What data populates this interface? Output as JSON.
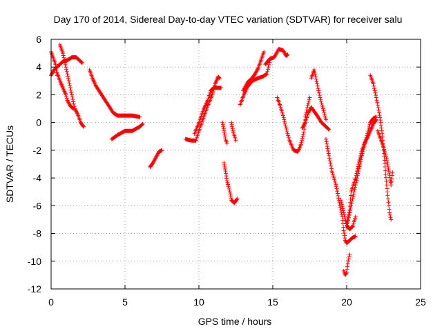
{
  "chart_data": {
    "type": "scatter",
    "title": "Day 170 of 2014, Sidereal Day-to-day VTEC variation (SDTVAR) for receiver salu",
    "xlabel": "GPS time / hours",
    "ylabel": "SDTVAR / TECUs",
    "xlim": [
      0,
      25
    ],
    "ylim": [
      -12,
      6
    ],
    "xticks": [
      "0",
      "5",
      "10",
      "15",
      "20",
      "25"
    ],
    "yticks": [
      "6",
      "4",
      "2",
      "0",
      "-2",
      "-4",
      "-6",
      "-8",
      "-10",
      "-12"
    ],
    "grid": true,
    "marker": "+",
    "marker_color": "#ff0000",
    "tracks": [
      [
        [
          0.0,
          3.4
        ],
        [
          0.2,
          3.8
        ],
        [
          0.5,
          4.1
        ],
        [
          0.8,
          4.4
        ],
        [
          1.1,
          4.5
        ],
        [
          1.4,
          4.7
        ],
        [
          1.7,
          4.7
        ],
        [
          2.0,
          4.4
        ],
        [
          2.1,
          4.3
        ]
      ],
      [
        [
          0.0,
          5.1
        ],
        [
          0.1,
          4.8
        ],
        [
          0.3,
          4.2
        ],
        [
          0.4,
          3.4
        ]
      ],
      [
        [
          0.4,
          3.6
        ],
        [
          0.6,
          3.0
        ],
        [
          0.8,
          2.5
        ],
        [
          1.0,
          2.0
        ],
        [
          1.1,
          1.6
        ],
        [
          1.3,
          1.2
        ],
        [
          1.5,
          1.0
        ]
      ],
      [
        [
          0.6,
          5.6
        ],
        [
          0.8,
          5.0
        ],
        [
          1.0,
          4.0
        ],
        [
          1.2,
          3.0
        ],
        [
          1.4,
          2.0
        ],
        [
          1.6,
          1.0
        ],
        [
          1.8,
          0.6
        ],
        [
          2.0,
          0.0
        ],
        [
          2.2,
          -0.3
        ]
      ],
      [
        [
          2.6,
          3.8
        ],
        [
          2.8,
          3.2
        ],
        [
          3.0,
          2.7
        ],
        [
          3.3,
          2.2
        ],
        [
          3.6,
          1.7
        ],
        [
          3.9,
          1.2
        ],
        [
          4.2,
          0.7
        ],
        [
          4.5,
          0.5
        ],
        [
          5.0,
          0.5
        ],
        [
          5.5,
          0.5
        ],
        [
          6.0,
          0.4
        ]
      ],
      [
        [
          4.1,
          -1.2
        ],
        [
          4.5,
          -0.9
        ],
        [
          5.0,
          -0.6
        ],
        [
          5.5,
          -0.6
        ],
        [
          6.0,
          -0.3
        ],
        [
          6.2,
          -0.1
        ]
      ],
      [
        [
          6.7,
          -3.2
        ],
        [
          6.9,
          -2.9
        ],
        [
          7.1,
          -2.5
        ],
        [
          7.3,
          -2.1
        ],
        [
          7.5,
          -2.0
        ]
      ],
      [
        [
          9.1,
          -1.2
        ],
        [
          9.5,
          -1.3
        ],
        [
          9.8,
          -1.3
        ],
        [
          10.0,
          -0.6
        ],
        [
          10.3,
          0.3
        ],
        [
          10.6,
          1.2
        ],
        [
          10.9,
          2.0
        ],
        [
          11.1,
          2.8
        ],
        [
          11.3,
          3.3
        ],
        [
          11.4,
          3.2
        ]
      ],
      [
        [
          9.7,
          -0.8
        ],
        [
          10.0,
          0.0
        ],
        [
          10.3,
          0.9
        ],
        [
          10.6,
          1.6
        ],
        [
          10.8,
          2.3
        ],
        [
          11.0,
          2.5
        ],
        [
          11.3,
          2.5
        ],
        [
          11.5,
          2.5
        ]
      ],
      [
        [
          11.6,
          0.0
        ],
        [
          11.7,
          -0.6
        ],
        [
          11.8,
          -1.2
        ],
        [
          11.9,
          -1.5
        ]
      ],
      [
        [
          11.7,
          -2.9
        ],
        [
          11.8,
          -3.5
        ],
        [
          11.9,
          -4.2
        ],
        [
          12.1,
          -5.0
        ],
        [
          12.2,
          -5.6
        ],
        [
          12.4,
          -5.8
        ],
        [
          12.6,
          -5.5
        ]
      ],
      [
        [
          12.2,
          0.0
        ],
        [
          12.3,
          -0.6
        ],
        [
          12.5,
          -1.3
        ]
      ],
      [
        [
          12.8,
          1.3
        ],
        [
          13.0,
          1.9
        ],
        [
          13.3,
          2.6
        ],
        [
          13.6,
          3.0
        ],
        [
          14.0,
          3.2
        ],
        [
          14.3,
          3.3
        ],
        [
          14.6,
          3.5
        ],
        [
          14.8,
          4.5
        ]
      ],
      [
        [
          13.0,
          2.3
        ],
        [
          13.3,
          2.9
        ],
        [
          13.6,
          3.2
        ],
        [
          13.8,
          3.5
        ],
        [
          14.0,
          3.9
        ],
        [
          14.2,
          4.5
        ],
        [
          14.4,
          5.1
        ]
      ],
      [
        [
          14.5,
          4.2
        ],
        [
          14.8,
          4.6
        ],
        [
          15.1,
          4.7
        ],
        [
          15.4,
          5.3
        ],
        [
          15.7,
          5.2
        ],
        [
          15.9,
          4.8
        ],
        [
          16.0,
          4.9
        ]
      ],
      [
        [
          15.3,
          1.8
        ],
        [
          15.5,
          1.2
        ],
        [
          15.7,
          0.5
        ],
        [
          15.9,
          -0.4
        ],
        [
          16.1,
          -1.2
        ],
        [
          16.4,
          -2.0
        ],
        [
          16.7,
          -2.1
        ],
        [
          16.9,
          -1.6
        ],
        [
          17.1,
          -0.7
        ],
        [
          17.2,
          0.4
        ],
        [
          17.4,
          1.4
        ],
        [
          17.5,
          1.8
        ]
      ],
      [
        [
          17.0,
          -0.4
        ],
        [
          17.2,
          0.0
        ],
        [
          17.4,
          0.7
        ],
        [
          17.6,
          1.1
        ],
        [
          18.0,
          0.5
        ],
        [
          18.3,
          0.0
        ],
        [
          18.6,
          -0.3
        ],
        [
          18.8,
          -0.5
        ]
      ],
      [
        [
          17.6,
          3.2
        ],
        [
          17.8,
          3.8
        ],
        [
          18.0,
          2.8
        ],
        [
          18.2,
          1.8
        ],
        [
          18.4,
          1.0
        ],
        [
          18.6,
          0.2
        ]
      ],
      [
        [
          18.6,
          -1.2
        ],
        [
          18.8,
          -2.4
        ],
        [
          19.0,
          -3.5
        ],
        [
          19.3,
          -4.6
        ],
        [
          19.5,
          -5.8
        ],
        [
          19.7,
          -6.8
        ],
        [
          19.8,
          -7.8
        ],
        [
          19.9,
          -8.5
        ],
        [
          20.0,
          -8.7
        ],
        [
          20.2,
          -8.5
        ],
        [
          20.4,
          -8.3
        ],
        [
          20.6,
          -8.2
        ]
      ],
      [
        [
          19.6,
          -5.6
        ],
        [
          19.8,
          -6.5
        ],
        [
          20.0,
          -7.4
        ],
        [
          20.2,
          -7.7
        ],
        [
          20.4,
          -7.5
        ],
        [
          20.6,
          -6.8
        ]
      ],
      [
        [
          19.8,
          -10.7
        ],
        [
          19.9,
          -11.0
        ],
        [
          20.0,
          -10.8
        ],
        [
          20.1,
          -10.0
        ],
        [
          20.2,
          -9.5
        ]
      ],
      [
        [
          20.0,
          -7.3
        ],
        [
          20.2,
          -6.3
        ],
        [
          20.3,
          -5.0
        ],
        [
          20.6,
          -4.0
        ],
        [
          20.8,
          -3.0
        ],
        [
          21.0,
          -2.1
        ],
        [
          21.2,
          -1.5
        ],
        [
          21.4,
          -1.1
        ],
        [
          21.6,
          -0.6
        ],
        [
          21.8,
          -0.1
        ],
        [
          22.0,
          0.2
        ]
      ],
      [
        [
          20.0,
          -7.6
        ],
        [
          20.2,
          -6.5
        ],
        [
          20.4,
          -5.5
        ],
        [
          20.6,
          -4.5
        ],
        [
          20.8,
          -3.5
        ],
        [
          21.0,
          -2.5
        ],
        [
          21.2,
          -1.7
        ],
        [
          21.4,
          -0.8
        ],
        [
          21.6,
          0.0
        ],
        [
          21.8,
          0.3
        ],
        [
          22.0,
          0.4
        ]
      ],
      [
        [
          21.6,
          3.4
        ],
        [
          21.8,
          2.8
        ],
        [
          22.0,
          1.8
        ],
        [
          22.2,
          0.7
        ],
        [
          22.3,
          0.0
        ],
        [
          22.4,
          -0.8
        ],
        [
          22.5,
          -2.0
        ],
        [
          22.6,
          -3.2
        ],
        [
          22.7,
          -4.5
        ],
        [
          22.8,
          -5.5
        ],
        [
          22.9,
          -6.5
        ],
        [
          23.0,
          -7.0
        ]
      ],
      [
        [
          22.1,
          -0.6
        ],
        [
          22.3,
          -1.2
        ],
        [
          22.5,
          -1.8
        ],
        [
          22.7,
          -2.6
        ],
        [
          22.8,
          -3.2
        ],
        [
          22.9,
          -3.8
        ],
        [
          23.0,
          -4.5
        ],
        [
          23.1,
          -3.6
        ]
      ]
    ]
  }
}
